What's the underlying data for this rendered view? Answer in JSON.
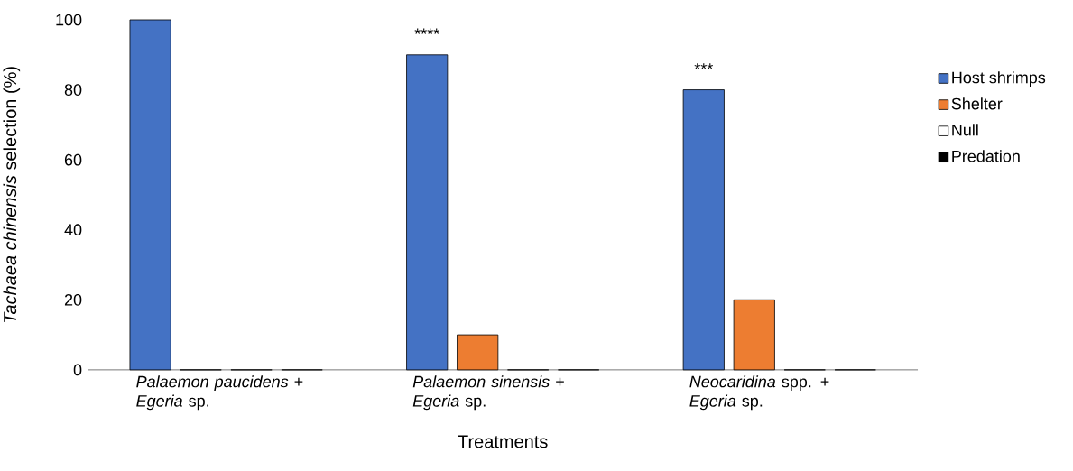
{
  "chart_data": {
    "type": "bar",
    "xlabel": "Treatments",
    "ylabel": "*Tachaea chinensis* selection  (%)",
    "categories": [
      "*Palaemon paucidens* + *Egeria* sp.",
      "*Palaemon sinensis* + *Egeria* sp.",
      "*Neocaridina* spp. + *Egeria* sp."
    ],
    "series": [
      {
        "name": "Host shrimps",
        "color": "#4472c4",
        "values": [
          100,
          90,
          80
        ]
      },
      {
        "name": "Shelter",
        "color": "#ed7d31",
        "values": [
          0,
          10,
          20
        ]
      },
      {
        "name": "Null",
        "color": "#ffffff",
        "values": [
          0,
          0,
          0
        ]
      },
      {
        "name": "Predation",
        "color": "#000000",
        "values": [
          0,
          0,
          0
        ]
      }
    ],
    "ylim": [
      0,
      100
    ],
    "yticks": [
      0,
      20,
      40,
      60,
      80,
      100
    ],
    "legend": "right",
    "annotations": [
      "****",
      "***"
    ]
  }
}
